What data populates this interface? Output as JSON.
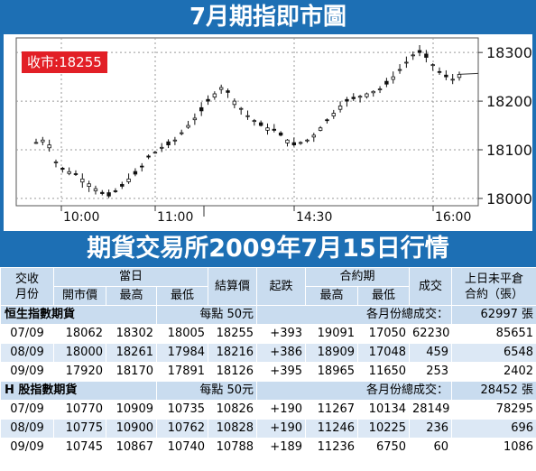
{
  "chart_title": "7月期指即市圖",
  "close_label": "收市:",
  "close_value": "18255",
  "table_title": "期貨交易所2009年7月15日行情",
  "colors": {
    "brand_blue": "#1d6fb4",
    "badge_red": "#e21f26",
    "header_bg": "#c9dcef",
    "row_alt_bg": "#dce8f5",
    "candle": "#111111",
    "grid": "#9a9a9a"
  },
  "chart_data": {
    "type": "candlestick",
    "title": "7月期指即市圖",
    "x_ticks": [
      "10:00",
      "11:00",
      "14:30",
      "16:00"
    ],
    "y_ticks": [
      18000,
      18100,
      18200,
      18300
    ],
    "ylim": [
      17985,
      18330
    ],
    "grid": true,
    "close": 18255,
    "annotation": "收市:18255",
    "session_break_after_tick": "11:00",
    "series_close_path": [
      18115,
      18120,
      18110,
      18075,
      18060,
      18055,
      18050,
      18040,
      18030,
      18020,
      18010,
      18005,
      18015,
      18025,
      18040,
      18050,
      18065,
      18085,
      18095,
      18105,
      18110,
      18120,
      18135,
      18150,
      18165,
      18180,
      18200,
      18215,
      18228,
      18218,
      18200,
      18185,
      18170,
      18160,
      18150,
      18145,
      18140,
      18130,
      18120,
      18110,
      18115,
      18120,
      18130,
      18145,
      18160,
      18175,
      18190,
      18200,
      18205,
      18210,
      18215,
      18220,
      18225,
      18235,
      18250,
      18265,
      18280,
      18295,
      18300,
      18290,
      18275,
      18260,
      18250,
      18245,
      18255
    ]
  },
  "headers": {
    "month_top": "交收",
    "month_bottom": "月份",
    "day": "當日",
    "open": "開市價",
    "high": "最高",
    "low": "最低",
    "settle": "結算價",
    "change": "起跌",
    "contract_period": "合約期",
    "contract_high": "最高",
    "contract_low": "最低",
    "volume": "成交",
    "oi_top": "上日未平倉",
    "oi_bottom": "合約（張）"
  },
  "sections": [
    {
      "name": "恒生指數期貨",
      "unit": "每點 50元",
      "total_label": "各月份總成交：",
      "total_value": "62997 張",
      "rows": [
        [
          "07/09",
          "18062",
          "18302",
          "18005",
          "18255",
          "+393",
          "19091",
          "17050",
          "62230",
          "85651"
        ],
        [
          "08/09",
          "18000",
          "18261",
          "17984",
          "18216",
          "+386",
          "18909",
          "17048",
          "459",
          "6548"
        ],
        [
          "09/09",
          "17920",
          "18170",
          "17891",
          "18126",
          "+395",
          "18965",
          "11650",
          "253",
          "2402"
        ]
      ]
    },
    {
      "name": "H 股指數期貨",
      "unit": "每點 50元",
      "total_label": "各月份總成交：",
      "total_value": "28452 張",
      "rows": [
        [
          "07/09",
          "10770",
          "10909",
          "10735",
          "10826",
          "+190",
          "11267",
          "10134",
          "28149",
          "78295"
        ],
        [
          "08/09",
          "10775",
          "10900",
          "10762",
          "10828",
          "+190",
          "11246",
          "10225",
          "236",
          "696"
        ],
        [
          "09/09",
          "10745",
          "10867",
          "10740",
          "10788",
          "+189",
          "11236",
          "6750",
          "60",
          "1086"
        ]
      ]
    }
  ]
}
